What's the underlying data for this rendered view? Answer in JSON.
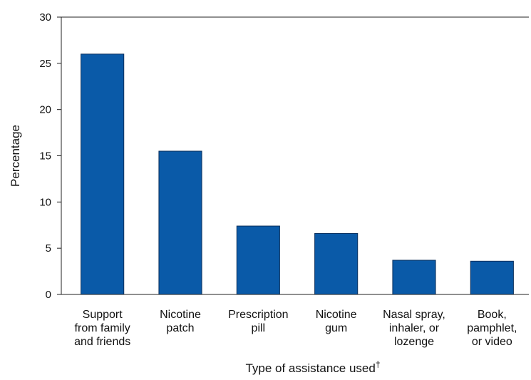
{
  "chart_data": {
    "type": "bar",
    "categories": [
      [
        "Support",
        "from family",
        "and friends"
      ],
      [
        "Nicotine",
        "patch"
      ],
      [
        "Prescription",
        "pill"
      ],
      [
        "Nicotine",
        "gum"
      ],
      [
        "Nasal spray,",
        "inhaler, or",
        "lozenge"
      ],
      [
        "Book,",
        "pamphlet,",
        "or video"
      ]
    ],
    "values": [
      26.0,
      15.5,
      7.4,
      6.6,
      3.7,
      3.6
    ],
    "xlabel": "Type of assistance used",
    "xlabel_mark": "†",
    "ylabel": "Percentage",
    "ylim": [
      0,
      30
    ],
    "yticks": [
      "0",
      "5",
      "10",
      "15",
      "20",
      "25",
      "30"
    ],
    "bar_color": "#0a5aa8",
    "bar_edge_color": "#0a2f5c",
    "grid": false,
    "legend": "none"
  }
}
